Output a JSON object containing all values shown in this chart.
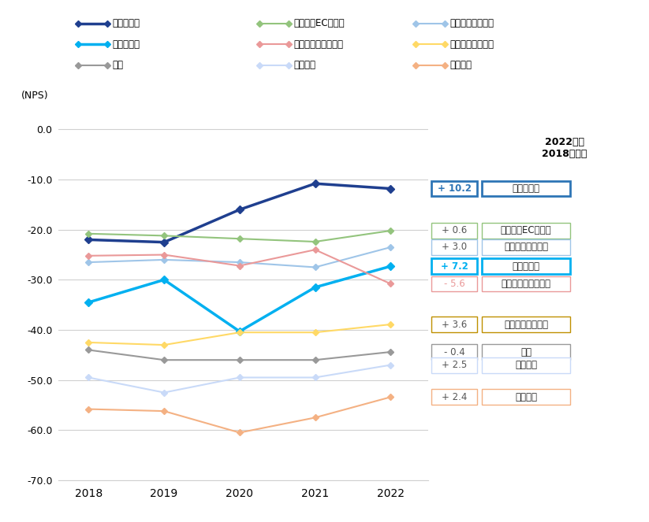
{
  "years": [
    2018,
    2019,
    2020,
    2021,
    2022
  ],
  "series": [
    {
      "name": "通販化粧品",
      "color": "#1f3f8f",
      "linewidth": 2.5,
      "marker": "D",
      "markersize": 5,
      "bold": true,
      "values": [
        -22.0,
        -22.5,
        -16.0,
        -10.8,
        -11.8
      ],
      "diff": "+ 10.2",
      "diff_border": "#2e75b6",
      "diff_text_color": "#2e75b6",
      "label_border": "#2e75b6",
      "label_bold": true,
      "highlight": true
    },
    {
      "name": "アパレルECサイト",
      "color": "#93c47d",
      "linewidth": 1.5,
      "marker": "D",
      "markersize": 4,
      "bold": false,
      "values": [
        -20.8,
        -21.2,
        -21.8,
        -22.4,
        -20.2
      ],
      "diff": "+ 0.6",
      "diff_border": "#93c47d",
      "diff_text_color": "#555555",
      "label_border": "#93c47d",
      "label_bold": false,
      "highlight": false
    },
    {
      "name": "動画配信サービス",
      "color": "#9fc5e8",
      "linewidth": 1.5,
      "marker": "D",
      "markersize": 4,
      "bold": false,
      "values": [
        -26.5,
        -26.0,
        -26.5,
        -27.5,
        -23.5
      ],
      "diff": "+ 3.0",
      "diff_border": "#9fc5e8",
      "diff_text_color": "#555555",
      "label_border": "#9fc5e8",
      "label_bold": false,
      "highlight": false
    },
    {
      "name": "ネット証券",
      "color": "#00b0f0",
      "linewidth": 2.5,
      "marker": "D",
      "markersize": 5,
      "bold": true,
      "values": [
        -34.5,
        -30.0,
        -40.3,
        -31.5,
        -27.3
      ],
      "diff": "+ 7.2",
      "diff_border": "#00b0f0",
      "diff_text_color": "#00b0f0",
      "label_border": "#00b0f0",
      "label_bold": true,
      "highlight": true
    },
    {
      "name": "セキュリティソフト",
      "color": "#ea9999",
      "linewidth": 1.5,
      "marker": "D",
      "markersize": 4,
      "bold": false,
      "values": [
        -25.2,
        -25.0,
        -27.2,
        -24.0,
        -30.8
      ],
      "diff": "- 5.6",
      "diff_border": "#ea9999",
      "diff_text_color": "#ea9999",
      "label_border": "#ea9999",
      "label_bold": false,
      "highlight": false
    },
    {
      "name": "クレジットカード",
      "color": "#ffd966",
      "linewidth": 1.5,
      "marker": "D",
      "markersize": 4,
      "bold": false,
      "values": [
        -42.5,
        -43.0,
        -40.5,
        -40.5,
        -38.9
      ],
      "diff": "+ 3.6",
      "diff_border": "#bf9000",
      "diff_text_color": "#555555",
      "label_border": "#bf9000",
      "label_bold": false,
      "highlight": false
    },
    {
      "name": "銀行",
      "color": "#999999",
      "linewidth": 1.5,
      "marker": "D",
      "markersize": 4,
      "bold": false,
      "values": [
        -44.0,
        -46.0,
        -46.0,
        -46.0,
        -44.4
      ],
      "diff": "- 0.4",
      "diff_border": "#999999",
      "diff_text_color": "#555555",
      "label_border": "#999999",
      "label_bold": false,
      "highlight": false
    },
    {
      "name": "生命保険",
      "color": "#c9daf8",
      "linewidth": 1.5,
      "marker": "D",
      "markersize": 4,
      "bold": false,
      "values": [
        -49.5,
        -52.5,
        -49.5,
        -49.5,
        -47.0
      ],
      "diff": "+ 2.5",
      "diff_border": "#c9daf8",
      "diff_text_color": "#555555",
      "label_border": "#c9daf8",
      "label_bold": false,
      "highlight": false
    },
    {
      "name": "対面証券",
      "color": "#f4b183",
      "linewidth": 1.5,
      "marker": "D",
      "markersize": 4,
      "bold": false,
      "values": [
        -55.8,
        -56.2,
        -60.5,
        -57.5,
        -53.4
      ],
      "diff": "+ 2.4",
      "diff_border": "#f4b183",
      "diff_text_color": "#555555",
      "label_border": "#f4b183",
      "label_bold": false,
      "highlight": false
    }
  ],
  "ylabel": "(NPS)",
  "ylim": [
    -70,
    5
  ],
  "yticks": [
    0.0,
    -10.0,
    -20.0,
    -30.0,
    -40.0,
    -50.0,
    -60.0,
    -70.0
  ],
  "ytick_labels": [
    "0.0",
    "-10.0",
    "-20.0",
    "-30.0",
    "-40.0",
    "-50.0",
    "-60.0",
    "-70.0"
  ],
  "annotation_title": "2022年と\n2018年の差",
  "background_color": "#ffffff",
  "legend_rows": [
    [
      "通販化粧品",
      "アパレルECサイト",
      "動画配信サービス"
    ],
    [
      "ネット証券",
      "セキュリティソフト",
      "クレジットカード"
    ],
    [
      "銀行",
      "生命保険",
      "対面証券"
    ]
  ],
  "box_y_positions": {
    "通販化粧品": -11.8,
    "アパレルECサイト": -20.2,
    "動画配信サービス": -23.5,
    "ネット証券": -27.3,
    "セキュリティソフト": -30.8,
    "クレジットカード": -38.9,
    "銀行": -44.4,
    "生命保険": -47.0,
    "対面証券": -53.4
  }
}
